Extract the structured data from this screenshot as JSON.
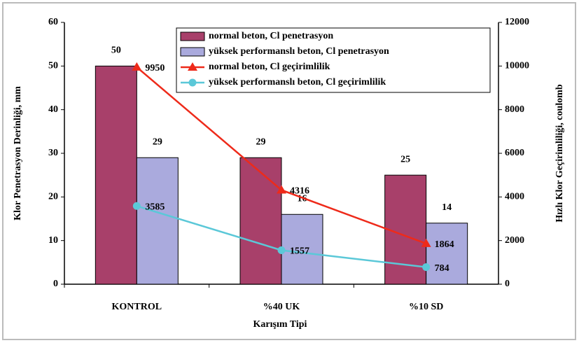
{
  "chart_data": {
    "type": "bar",
    "categories": [
      "KONTROL",
      "%40 UK",
      "%10 SD"
    ],
    "x_label": "Karışım Tipi",
    "y_label": "Klor Penetrasyon Derinliği, mm",
    "y2_label": "Hızlı Klor Geçirimliliği, coulomb",
    "ylim": [
      0,
      60
    ],
    "yticks": [
      0,
      10,
      20,
      30,
      40,
      50,
      60
    ],
    "y2lim": [
      0,
      12000
    ],
    "y2ticks": [
      0,
      2000,
      4000,
      6000,
      8000,
      10000,
      12000
    ],
    "series": [
      {
        "name": "normal beton, Cl penetrasyon",
        "type": "bar",
        "color": "#a8406a",
        "values": [
          50,
          29,
          25
        ]
      },
      {
        "name": "yüksek performanslı beton, Cl penetrasyon",
        "type": "bar",
        "color": "#aaaadd",
        "values": [
          29,
          16,
          14
        ]
      },
      {
        "name": "normal beton, Cl geçirimlilik",
        "type": "line",
        "marker": "triangle",
        "axis": "y2",
        "color": "#ee2a1a",
        "values": [
          9950,
          4316,
          1864
        ]
      },
      {
        "name": "yüksek performanslı beton, Cl geçirimlilik",
        "type": "line",
        "marker": "circle",
        "axis": "y2",
        "color": "#5bc8d8",
        "values": [
          3585,
          1557,
          784
        ]
      }
    ]
  }
}
